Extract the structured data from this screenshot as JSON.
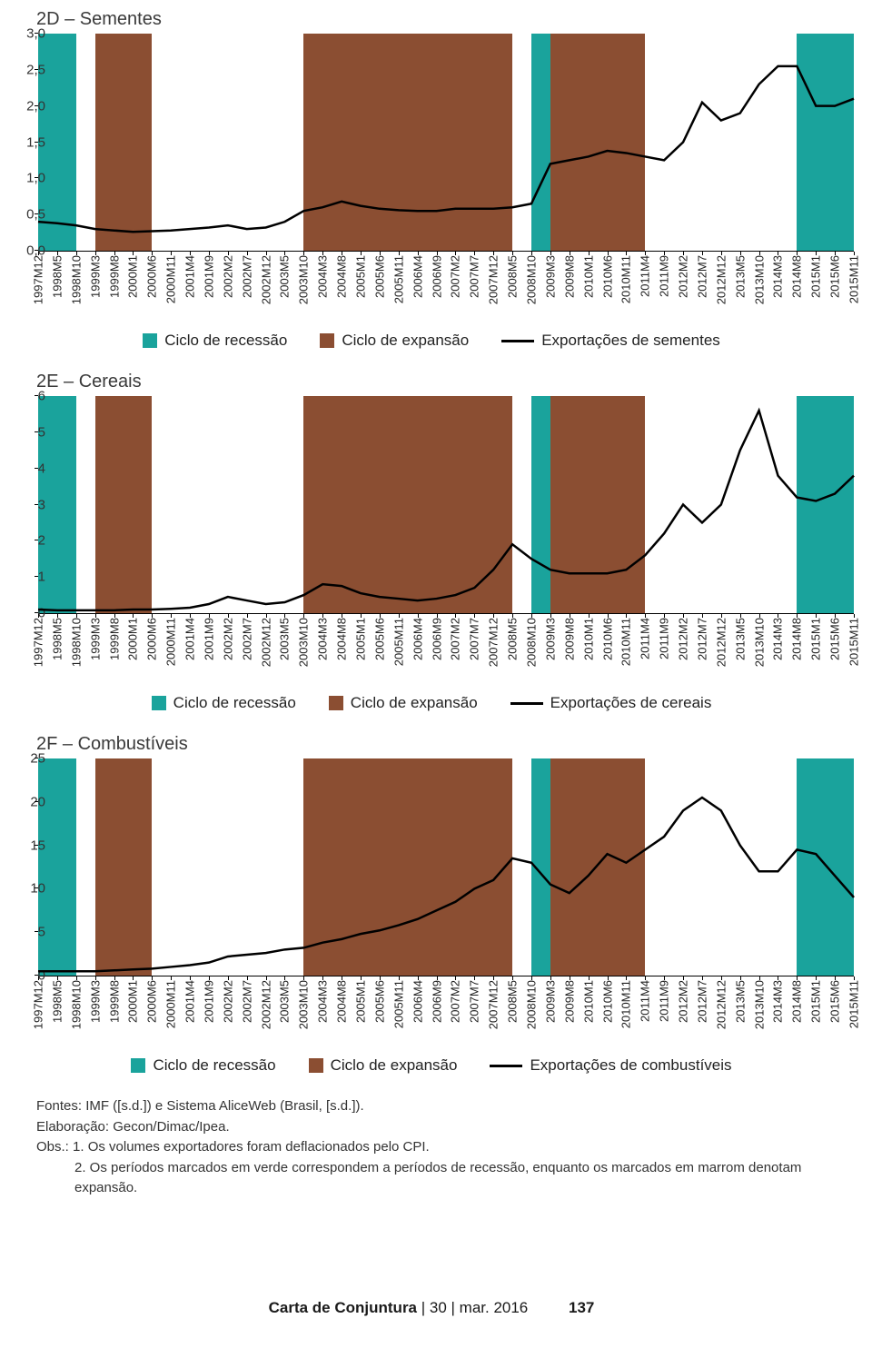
{
  "colors": {
    "recession": "#1aa39c",
    "expansion": "#8b4e32",
    "line": "#000000",
    "background": "#ffffff",
    "text": "#222222"
  },
  "line_width": 2.5,
  "xlabels": [
    "1997M12",
    "1998M5",
    "1998M10",
    "1999M3",
    "1999M8",
    "2000M1",
    "2000M6",
    "2000M11",
    "2001M4",
    "2001M9",
    "2002M2",
    "2002M7",
    "2002M12",
    "2003M5",
    "2003M10",
    "2004M3",
    "2004M8",
    "2005M1",
    "2005M6",
    "2005M11",
    "2006M4",
    "2006M9",
    "2007M2",
    "2007M7",
    "2007M12",
    "2008M5",
    "2008M10",
    "2009M3",
    "2009M8",
    "2010M1",
    "2010M6",
    "2010M11",
    "2011M4",
    "2011M9",
    "2012M2",
    "2012M7",
    "2012M12",
    "2013M5",
    "2013M10",
    "2014M3",
    "2014M8",
    "2015M1",
    "2015M6",
    "2015M11"
  ],
  "cycle_bands": [
    {
      "type": "recession",
      "start": 0,
      "end": 2
    },
    {
      "type": "expansion",
      "start": 3,
      "end": 6
    },
    {
      "type": "expansion",
      "start": 14,
      "end": 25
    },
    {
      "type": "recession",
      "start": 26,
      "end": 27
    },
    {
      "type": "expansion",
      "start": 27,
      "end": 32
    },
    {
      "type": "recession",
      "start": 40,
      "end": 43
    }
  ],
  "legend": {
    "recession": "Ciclo de recessão",
    "expansion": "Ciclo de expansão"
  },
  "charts": [
    {
      "id": "2d",
      "title": "2D – Sementes",
      "ylabel_ticks": [
        "0,0",
        "0,5",
        "1,0",
        "1,5",
        "2,0",
        "2,5",
        "3,0"
      ],
      "ylim": [
        0,
        3
      ],
      "series_label": "Exportações de sementes",
      "values": [
        0.4,
        0.38,
        0.35,
        0.3,
        0.28,
        0.26,
        0.27,
        0.28,
        0.3,
        0.32,
        0.35,
        0.3,
        0.32,
        0.4,
        0.55,
        0.6,
        0.68,
        0.62,
        0.58,
        0.56,
        0.55,
        0.55,
        0.58,
        0.58,
        0.58,
        0.6,
        0.65,
        1.2,
        1.25,
        1.3,
        1.38,
        1.35,
        1.3,
        1.25,
        1.5,
        2.05,
        1.8,
        1.9,
        2.3,
        2.55,
        2.55,
        2.0,
        2.0,
        2.1
      ]
    },
    {
      "id": "2e",
      "title": "2E – Cereais",
      "ylabel_ticks": [
        "0",
        "1",
        "2",
        "3",
        "4",
        "5",
        "6"
      ],
      "ylim": [
        0,
        6
      ],
      "series_label": "Exportações de cereais",
      "values": [
        0.1,
        0.08,
        0.08,
        0.08,
        0.08,
        0.1,
        0.1,
        0.12,
        0.15,
        0.25,
        0.45,
        0.35,
        0.25,
        0.3,
        0.5,
        0.8,
        0.75,
        0.55,
        0.45,
        0.4,
        0.35,
        0.4,
        0.5,
        0.7,
        1.2,
        1.9,
        1.5,
        1.2,
        1.1,
        1.1,
        1.1,
        1.2,
        1.6,
        2.2,
        3.0,
        2.5,
        3.0,
        4.5,
        5.6,
        3.8,
        3.2,
        3.1,
        3.3,
        3.8
      ]
    },
    {
      "id": "2f",
      "title": "2F – Combustíveis",
      "ylabel_ticks": [
        "0",
        "5",
        "10",
        "15",
        "20",
        "25"
      ],
      "ylim": [
        0,
        25
      ],
      "series_label": "Exportações de combustíveis",
      "values": [
        0.5,
        0.5,
        0.5,
        0.5,
        0.6,
        0.7,
        0.8,
        1.0,
        1.2,
        1.5,
        2.2,
        2.4,
        2.6,
        3.0,
        3.2,
        3.8,
        4.2,
        4.8,
        5.2,
        5.8,
        6.5,
        7.5,
        8.5,
        10.0,
        11.0,
        13.5,
        13.0,
        10.5,
        9.5,
        11.5,
        14.0,
        13.0,
        14.5,
        16.0,
        19.0,
        20.5,
        19.0,
        15.0,
        12.0,
        12.0,
        14.5,
        14.0,
        11.5,
        9.0
      ]
    }
  ],
  "footnotes": {
    "sources": "Fontes: IMF ([s.d.]) e Sistema AliceWeb (Brasil, [s.d.]).",
    "elab": "Elaboração: Gecon/Dimac/Ipea.",
    "obs1": "Obs.: 1. Os volumes exportadores foram deflacionados pelo CPI.",
    "obs2": "2. Os períodos marcados em verde correspondem a períodos de recessão, enquanto os marcados em marrom denotam expansão."
  },
  "footer": {
    "title": "Carta de Conjuntura",
    "issue": "| 30 | mar. 2016",
    "page": "137"
  }
}
